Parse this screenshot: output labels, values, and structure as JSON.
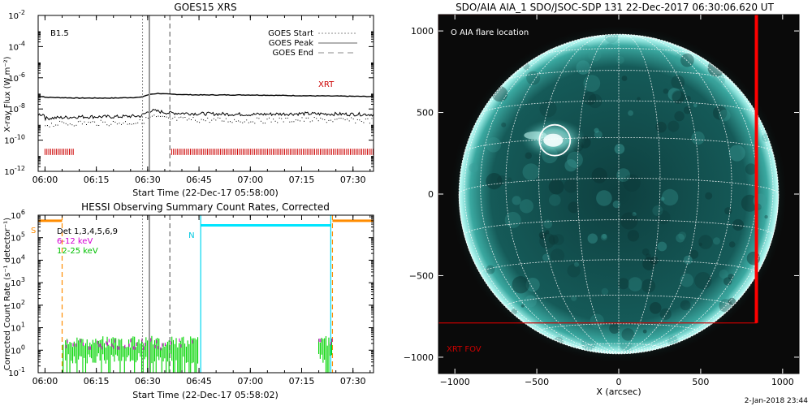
{
  "footer": {
    "timestamp": "2-Jan-2018 23:44"
  },
  "chart_data": [
    {
      "id": "goes",
      "type": "line",
      "title": "GOES15 XRS",
      "xlabel": "Start Time (22-Dec-17 05:58:00)",
      "ylabel": "X-ray Flux (W m⁻²)",
      "x_ticks": [
        "06:00",
        "06:15",
        "06:30",
        "06:45",
        "07:00",
        "07:15",
        "07:30"
      ],
      "x_tick_minutes": [
        0,
        15,
        30,
        45,
        60,
        75,
        90
      ],
      "xlim_minutes": [
        -2,
        96
      ],
      "y_scale": "log",
      "ylim_exp": [
        -12,
        -2
      ],
      "y_ticks": [
        {
          "b": "10",
          "e": "-2"
        },
        {
          "b": "10",
          "e": "-4"
        },
        {
          "b": "10",
          "e": "-6"
        },
        {
          "b": "10",
          "e": "-8"
        },
        {
          "b": "10",
          "e": "-10"
        },
        {
          "b": "10",
          "e": "-12"
        }
      ],
      "class_label": "B1.5",
      "legend": [
        "GOES Start",
        "GOES Peak",
        "GOES End"
      ],
      "xrt_label": "XRT",
      "markers_minutes": {
        "start": 28.5,
        "peak": 30.5,
        "end": 36.5
      },
      "series": [
        {
          "name": "long",
          "x": [
            0,
            10,
            20,
            28,
            30,
            31,
            33,
            36,
            45,
            60,
            75,
            96
          ],
          "y_exp": [
            -7.25,
            -7.3,
            -7.3,
            -7.25,
            -7.1,
            -7.05,
            -7.0,
            -7.05,
            -7.1,
            -7.1,
            -7.15,
            -7.2
          ]
        },
        {
          "name": "short",
          "x": [
            0,
            10,
            20,
            28,
            30,
            31,
            33,
            36,
            45,
            60,
            75,
            96
          ],
          "y_exp": [
            -8.6,
            -8.5,
            -8.5,
            -8.45,
            -8.2,
            -8.1,
            -8.15,
            -8.25,
            -8.3,
            -8.35,
            -8.3,
            -8.35
          ]
        }
      ],
      "xrt_intervals_minutes": [
        [
          0,
          8.5
        ],
        [
          37,
          96
        ]
      ]
    },
    {
      "id": "hessi",
      "type": "line",
      "title": "HESSI Observing Summary Count Rates, Corrected",
      "xlabel": "Start Time (22-Dec-17 05:58:02)",
      "ylabel": "Corrected Count Rate (s⁻¹ detector⁻¹)",
      "x_ticks": [
        "06:00",
        "06:15",
        "06:30",
        "06:45",
        "07:00",
        "07:15",
        "07:30"
      ],
      "x_tick_minutes": [
        0,
        15,
        30,
        45,
        60,
        75,
        90
      ],
      "xlim_minutes": [
        -2,
        96
      ],
      "y_scale": "log",
      "ylim_exp": [
        -1,
        6
      ],
      "y_ticks": [
        {
          "b": "10",
          "e": "6"
        },
        {
          "b": "10",
          "e": "5"
        },
        {
          "b": "10",
          "e": "4"
        },
        {
          "b": "10",
          "e": "3"
        },
        {
          "b": "10",
          "e": "2"
        },
        {
          "b": "10",
          "e": "1"
        },
        {
          "b": "10",
          "e": "0"
        },
        {
          "b": "10",
          "e": "-1"
        }
      ],
      "legend": [
        "Det 1,3,4,5,6,9",
        "6-12 keV",
        "12-25 keV"
      ],
      "legend_colors": [
        "#000000",
        "#d400d4",
        "#00d400"
      ],
      "s_label": "S",
      "n_label": "N",
      "markers_minutes": {
        "start": 28.5,
        "peak": 30.5,
        "end": 36.5
      },
      "saa_intervals_minutes": [
        [
          -2,
          5
        ],
        [
          84,
          96
        ]
      ],
      "night_interval_minutes": [
        45.5,
        83.5
      ],
      "level_exp": {
        "saa": 5.75,
        "night": 5.55,
        "counts_12_25": 0.25,
        "counts_6_12": 0.3
      },
      "data_interval_minutes": [
        6,
        45
      ],
      "data_interval2_minutes": [
        80,
        84
      ]
    },
    {
      "id": "aia",
      "type": "image",
      "title": "SDO/AIA AIA_1 SDO/JSOC-SDP 131 22-Dec-2017 06:30:06.620 UT",
      "xlabel": "X (arcsec)",
      "x_ticks": [
        "−1000",
        "−500",
        "0",
        "500",
        "1000"
      ],
      "y_ticks": [
        "1000",
        "500",
        "0",
        "−500",
        "−1000"
      ],
      "tick_values": [
        -1000,
        -500,
        0,
        500,
        1000
      ],
      "xlim": [
        -1100,
        1100
      ],
      "ylim": [
        -1100,
        1100
      ],
      "solar_radius_arcsec": 975,
      "flare_location_label": "O AIA flare location",
      "flare_location_arcsec": [
        -400,
        340
      ],
      "xrt_fov_label": "XRT FOV",
      "xrt_fov_arcsec": {
        "x0": -1100,
        "x1": 840,
        "y0": -790,
        "y1": 1100
      }
    }
  ]
}
